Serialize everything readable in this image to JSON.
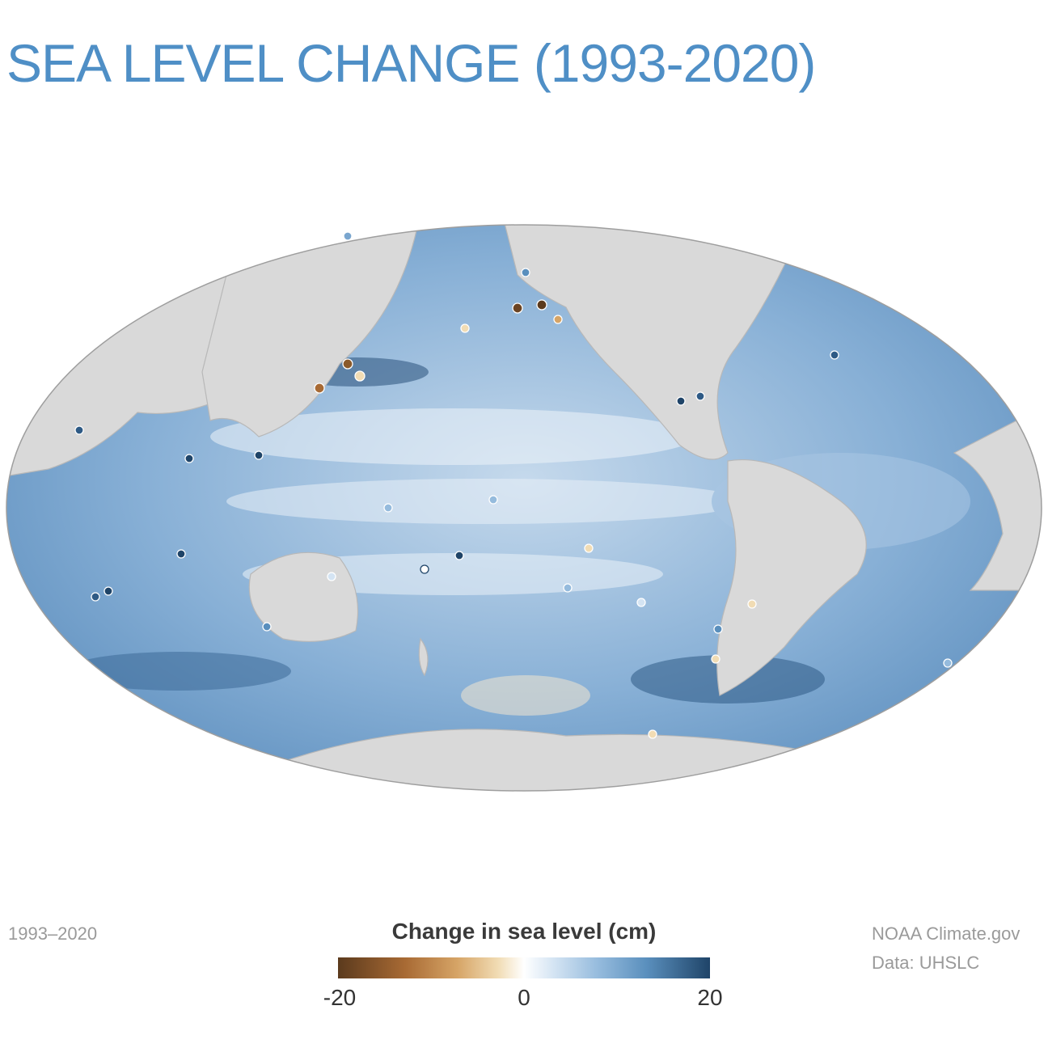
{
  "title": "SEA LEVEL CHANGE (1993-2020)",
  "period_label": "1993–2020",
  "legend": {
    "title": "Change in sea level (cm)",
    "ticks": [
      "-20",
      "0",
      "20"
    ],
    "colors": {
      "low": "#5b3a1d",
      "mid": "#ffffff",
      "high": "#1f4468"
    }
  },
  "credits": {
    "source": "NOAA Climate.gov",
    "data": "Data: UHSLC"
  },
  "map": {
    "projection": "Mollweide",
    "ocean_color": "#7aa6cf",
    "land_color": "#d9d9d9"
  }
}
